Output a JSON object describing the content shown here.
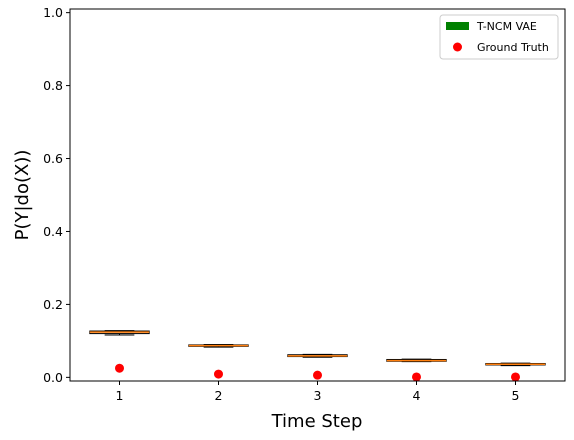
{
  "chart_data": {
    "type": "box",
    "xlabel": "Time Step",
    "ylabel": "P(Y|do(X))",
    "x_ticks": [
      "1",
      "2",
      "3",
      "4",
      "5"
    ],
    "y_ticks": [
      "0.0",
      "0.2",
      "0.4",
      "0.6",
      "0.8",
      "1.0"
    ],
    "ylim": [
      -0.01,
      1.01
    ],
    "xlim": [
      0.5,
      5.5
    ],
    "grid": false,
    "legend": {
      "placement": "top-right",
      "entries": [
        {
          "label": "T-NCM VAE",
          "kind": "patch",
          "color": "#008000"
        },
        {
          "label": "Ground Truth",
          "kind": "marker",
          "color": "#ff0000"
        }
      ]
    },
    "series": [
      {
        "name": "T-NCM VAE",
        "kind": "box",
        "color": "#008000",
        "median_color": "#ff7f0e",
        "boxes": [
          {
            "x": 1,
            "whislo": 0.116,
            "q1": 0.12,
            "med": 0.124,
            "q3": 0.127,
            "whishi": 0.128
          },
          {
            "x": 2,
            "whislo": 0.083,
            "q1": 0.085,
            "med": 0.087,
            "q3": 0.089,
            "whishi": 0.09
          },
          {
            "x": 3,
            "whislo": 0.055,
            "q1": 0.057,
            "med": 0.059,
            "q3": 0.062,
            "whishi": 0.063
          },
          {
            "x": 4,
            "whislo": 0.043,
            "q1": 0.044,
            "med": 0.046,
            "q3": 0.049,
            "whishi": 0.05
          },
          {
            "x": 5,
            "whislo": 0.032,
            "q1": 0.034,
            "med": 0.036,
            "q3": 0.038,
            "whishi": 0.039
          }
        ]
      },
      {
        "name": "Ground Truth",
        "kind": "scatter",
        "color": "#ff0000",
        "x": [
          1,
          2,
          3,
          4,
          5
        ],
        "y": [
          0.025,
          0.009,
          0.006,
          0.001,
          0.001
        ]
      }
    ]
  }
}
